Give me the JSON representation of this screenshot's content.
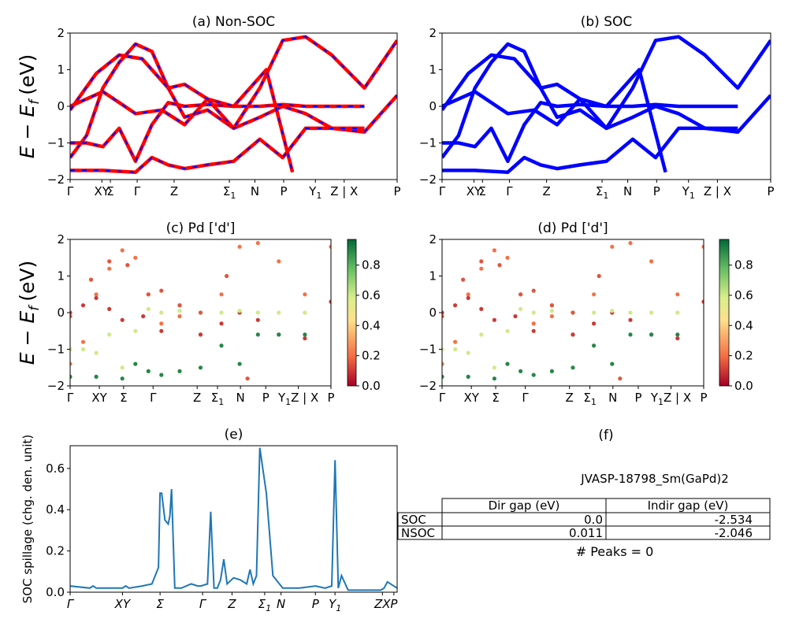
{
  "figure": {
    "ylabel": "E − E",
    "ylabel_sub": "f",
    "ylabel_unit": "(eV)"
  },
  "colors": {
    "nonsoc_band": "#ff0000",
    "nonsoc_dash": "#0000ff",
    "soc_band": "#0000ff",
    "spillage_line": "#1f77b4",
    "colormap": [
      "#a50026",
      "#f46d43",
      "#fee08b",
      "#d9ef8b",
      "#66bd63",
      "#006837"
    ]
  },
  "chart_data": [
    {
      "id": "a",
      "type": "line",
      "title": "(a) Non-SOC",
      "ylim": [
        -2,
        2
      ],
      "yticks": [
        -2,
        -1,
        0,
        1,
        2
      ],
      "xticklabels": [
        "Γ",
        "XY",
        "Σ",
        "Γ",
        "Z",
        "Σ1",
        "N",
        "P",
        "Y1",
        "Z | X",
        "P"
      ],
      "series": [
        {
          "x": [
            0,
            0.05,
            0.1,
            0.15,
            0.2,
            0.25,
            0.3,
            0.35,
            0.42,
            0.5,
            0.58,
            0.65,
            0.72,
            0.8,
            0.9,
            1.0
          ],
          "y": [
            -1.4,
            -0.8,
            0.5,
            1.2,
            1.7,
            1.5,
            0.5,
            -0.3,
            -0.1,
            -0.6,
            0.5,
            1.8,
            1.9,
            1.4,
            0.5,
            1.8
          ]
        },
        {
          "x": [
            0,
            0.05,
            0.1,
            0.15,
            0.2,
            0.28,
            0.35,
            0.42,
            0.5,
            0.58,
            0.65,
            0.72,
            0.8,
            0.9,
            1.0
          ],
          "y": [
            0,
            0.2,
            0.4,
            0.1,
            -0.2,
            -0.1,
            -0.5,
            0.2,
            -0.6,
            -0.3,
            0.0,
            -0.2,
            -0.6,
            -0.7,
            0.3
          ]
        },
        {
          "x": [
            0,
            0.05,
            0.1,
            0.15,
            0.2,
            0.25,
            0.3,
            0.35,
            0.42,
            0.5,
            0.58,
            0.65,
            0.72,
            0.8,
            0.9
          ],
          "y": [
            -1.0,
            -1.0,
            -1.1,
            -0.6,
            -1.5,
            -0.5,
            0.1,
            0.0,
            0.05,
            0.0,
            0.0,
            0.05,
            0.0,
            0.0,
            0.0
          ]
        },
        {
          "x": [
            0,
            0.1,
            0.2,
            0.25,
            0.3,
            0.35,
            0.42,
            0.5,
            0.58,
            0.65,
            0.72,
            0.8,
            0.9
          ],
          "y": [
            -1.75,
            -1.75,
            -1.8,
            -1.4,
            -1.6,
            -1.7,
            -1.6,
            -1.5,
            -0.9,
            -1.4,
            -0.6,
            -0.6,
            -0.6
          ]
        },
        {
          "x": [
            0,
            0.08,
            0.15,
            0.22,
            0.3,
            0.35,
            0.42,
            0.5,
            0.6,
            0.68
          ],
          "y": [
            -0.1,
            0.9,
            1.4,
            1.3,
            0.5,
            0.6,
            0.2,
            0.0,
            1.0,
            -1.8
          ]
        }
      ]
    },
    {
      "id": "b",
      "type": "line",
      "title": "(b) SOC",
      "ylim": [
        -2,
        2
      ],
      "yticks": [
        -2,
        -1,
        0,
        1,
        2
      ],
      "xticklabels": [
        "Γ",
        "XY",
        "Σ",
        "Γ",
        "Z",
        "Σ1",
        "N",
        "P",
        "Y1",
        "Z | X",
        "P"
      ],
      "series": [
        {
          "x": [
            0,
            0.05,
            0.1,
            0.15,
            0.2,
            0.25,
            0.3,
            0.35,
            0.42,
            0.5,
            0.58,
            0.65,
            0.72,
            0.8,
            0.9,
            1.0
          ],
          "y": [
            -1.4,
            -0.8,
            0.5,
            1.2,
            1.7,
            1.5,
            0.5,
            -0.3,
            -0.1,
            -0.6,
            0.5,
            1.8,
            1.9,
            1.4,
            0.5,
            1.8
          ]
        },
        {
          "x": [
            0,
            0.05,
            0.1,
            0.15,
            0.2,
            0.28,
            0.35,
            0.42,
            0.5,
            0.58,
            0.65,
            0.72,
            0.8,
            0.9,
            1.0
          ],
          "y": [
            0,
            0.2,
            0.4,
            0.1,
            -0.2,
            -0.1,
            -0.5,
            0.2,
            -0.6,
            -0.3,
            0.0,
            -0.2,
            -0.6,
            -0.7,
            0.3
          ]
        },
        {
          "x": [
            0,
            0.05,
            0.1,
            0.15,
            0.2,
            0.25,
            0.3,
            0.35,
            0.42,
            0.5,
            0.58,
            0.65,
            0.72,
            0.8,
            0.9
          ],
          "y": [
            -1.0,
            -1.0,
            -1.1,
            -0.6,
            -1.5,
            -0.5,
            0.1,
            0.0,
            0.05,
            0.0,
            0.0,
            0.05,
            0.0,
            0.0,
            0.0
          ]
        },
        {
          "x": [
            0,
            0.1,
            0.2,
            0.25,
            0.3,
            0.35,
            0.42,
            0.5,
            0.58,
            0.65,
            0.72,
            0.8,
            0.9
          ],
          "y": [
            -1.75,
            -1.75,
            -1.8,
            -1.4,
            -1.6,
            -1.7,
            -1.6,
            -1.5,
            -0.9,
            -1.4,
            -0.6,
            -0.6,
            -0.6
          ]
        },
        {
          "x": [
            0,
            0.08,
            0.15,
            0.22,
            0.3,
            0.35,
            0.42,
            0.5,
            0.6,
            0.68
          ],
          "y": [
            -0.1,
            0.9,
            1.4,
            1.3,
            0.5,
            0.6,
            0.2,
            0.0,
            1.0,
            -1.8
          ]
        }
      ]
    },
    {
      "id": "c",
      "type": "scatter",
      "title": "(c)  Pd ['d']",
      "ylim": [
        -2,
        2
      ],
      "yticks": [
        -2,
        -1,
        0,
        1,
        2
      ],
      "colorbar_ticks": [
        0.0,
        0.2,
        0.4,
        0.6,
        0.8
      ],
      "colorbar_range": [
        0.0,
        0.97
      ],
      "xticklabels": [
        "Γ",
        "XY",
        "Σ",
        "Γ",
        "Z",
        "Σ1",
        "N",
        "P",
        "Y1Z | X",
        "P"
      ],
      "series": [
        {
          "x": [
            0,
            0.05,
            0.1,
            0.15,
            0.2,
            0.25,
            0.3,
            0.35,
            0.42,
            0.5,
            0.58,
            0.65,
            0.72,
            0.8,
            0.9,
            1.0
          ],
          "y": [
            -1.4,
            -0.8,
            0.5,
            1.2,
            1.7,
            1.5,
            0.5,
            -0.3,
            -0.1,
            -0.6,
            0.5,
            1.8,
            1.9,
            1.4,
            0.5,
            1.8
          ],
          "w": 0.2
        },
        {
          "x": [
            0,
            0.05,
            0.1,
            0.15,
            0.2,
            0.28,
            0.35,
            0.42,
            0.5,
            0.58,
            0.65,
            0.72,
            0.8,
            0.9,
            1.0
          ],
          "y": [
            0,
            0.2,
            0.4,
            0.1,
            -0.2,
            -0.1,
            -0.5,
            0.2,
            -0.6,
            -0.3,
            0.0,
            -0.2,
            -0.6,
            -0.7,
            0.3
          ],
          "w": 0.1
        },
        {
          "x": [
            0,
            0.05,
            0.1,
            0.15,
            0.2,
            0.25,
            0.3,
            0.35,
            0.42,
            0.5,
            0.58,
            0.65,
            0.72,
            0.8,
            0.9
          ],
          "y": [
            -1.0,
            -1.0,
            -1.1,
            -0.6,
            -1.5,
            -0.5,
            0.1,
            0.0,
            0.05,
            0.0,
            0.0,
            0.05,
            0.0,
            0.0,
            0.0
          ],
          "w": 0.6
        },
        {
          "x": [
            0,
            0.1,
            0.2,
            0.25,
            0.3,
            0.35,
            0.42,
            0.5,
            0.58,
            0.65,
            0.72,
            0.8,
            0.9
          ],
          "y": [
            -1.75,
            -1.75,
            -1.8,
            -1.4,
            -1.6,
            -1.7,
            -1.6,
            -1.5,
            -0.9,
            -1.4,
            -0.6,
            -0.6,
            -0.6
          ],
          "w": 0.9
        },
        {
          "x": [
            0,
            0.08,
            0.15,
            0.22,
            0.3,
            0.35,
            0.42,
            0.5,
            0.6,
            0.68
          ],
          "y": [
            -0.1,
            0.9,
            1.4,
            1.3,
            0.5,
            0.6,
            0.2,
            0.0,
            1.0,
            -1.8
          ],
          "w": 0.15
        }
      ]
    },
    {
      "id": "d",
      "type": "scatter",
      "title": "(d) Pd ['d']",
      "ylim": [
        -2,
        2
      ],
      "yticks": [
        -2,
        -1,
        0,
        1,
        2
      ],
      "colorbar_ticks": [
        0.0,
        0.2,
        0.4,
        0.6,
        0.8
      ],
      "colorbar_range": [
        0.0,
        0.97
      ],
      "xticklabels": [
        "Γ",
        "XY",
        "Σ",
        "Γ",
        "Z",
        "Σ1",
        "N",
        "P",
        "Y1Z | X",
        "P"
      ],
      "series": [
        {
          "x": [
            0,
            0.05,
            0.1,
            0.15,
            0.2,
            0.25,
            0.3,
            0.35,
            0.42,
            0.5,
            0.58,
            0.65,
            0.72,
            0.8,
            0.9,
            1.0
          ],
          "y": [
            -1.4,
            -0.8,
            0.5,
            1.2,
            1.7,
            1.5,
            0.5,
            -0.3,
            -0.1,
            -0.6,
            0.5,
            1.8,
            1.9,
            1.4,
            0.5,
            1.8
          ],
          "w": 0.2
        },
        {
          "x": [
            0,
            0.05,
            0.1,
            0.15,
            0.2,
            0.28,
            0.35,
            0.42,
            0.5,
            0.58,
            0.65,
            0.72,
            0.8,
            0.9,
            1.0
          ],
          "y": [
            0,
            0.2,
            0.4,
            0.1,
            -0.2,
            -0.1,
            -0.5,
            0.2,
            -0.6,
            -0.3,
            0.0,
            -0.2,
            -0.6,
            -0.7,
            0.3
          ],
          "w": 0.1
        },
        {
          "x": [
            0,
            0.05,
            0.1,
            0.15,
            0.2,
            0.25,
            0.3,
            0.35,
            0.42,
            0.5,
            0.58,
            0.65,
            0.72,
            0.8,
            0.9
          ],
          "y": [
            -1.0,
            -1.0,
            -1.1,
            -0.6,
            -1.5,
            -0.5,
            0.1,
            0.0,
            0.05,
            0.0,
            0.0,
            0.05,
            0.0,
            0.0,
            0.0
          ],
          "w": 0.6
        },
        {
          "x": [
            0,
            0.1,
            0.2,
            0.25,
            0.3,
            0.35,
            0.42,
            0.5,
            0.58,
            0.65,
            0.72,
            0.8,
            0.9
          ],
          "y": [
            -1.75,
            -1.75,
            -1.8,
            -1.4,
            -1.6,
            -1.7,
            -1.6,
            -1.5,
            -0.9,
            -1.4,
            -0.6,
            -0.6,
            -0.6
          ],
          "w": 0.9
        },
        {
          "x": [
            0,
            0.08,
            0.15,
            0.22,
            0.3,
            0.35,
            0.42,
            0.5,
            0.6,
            0.68
          ],
          "y": [
            -0.1,
            0.9,
            1.4,
            1.3,
            0.5,
            0.6,
            0.2,
            0.0,
            1.0,
            -1.8
          ],
          "w": 0.15
        }
      ]
    },
    {
      "id": "e",
      "type": "line",
      "title": "(e)",
      "ylabel": "SOC spillage (chg. den. unit)",
      "ylim": [
        0.0,
        0.71
      ],
      "yticks": [
        0.0,
        0.2,
        0.4,
        0.6
      ],
      "xticklabels": [
        "Γ",
        "XY",
        "Σ",
        "Γ",
        "Z",
        "Σ1",
        "N",
        "P",
        "Y1",
        "ZX",
        "P"
      ],
      "x": [
        0,
        0.06,
        0.07,
        0.08,
        0.1,
        0.16,
        0.17,
        0.18,
        0.22,
        0.25,
        0.27,
        0.275,
        0.28,
        0.29,
        0.3,
        0.305,
        0.31,
        0.32,
        0.34,
        0.37,
        0.39,
        0.4,
        0.42,
        0.43,
        0.44,
        0.45,
        0.46,
        0.47,
        0.48,
        0.5,
        0.52,
        0.54,
        0.55,
        0.56,
        0.57,
        0.58,
        0.6,
        0.62,
        0.65,
        0.7,
        0.75,
        0.78,
        0.8,
        0.81,
        0.82,
        0.83,
        0.85,
        0.9,
        0.95,
        0.96,
        0.97,
        1.0
      ],
      "y": [
        0.03,
        0.02,
        0.03,
        0.02,
        0.02,
        0.02,
        0.03,
        0.02,
        0.03,
        0.04,
        0.12,
        0.48,
        0.48,
        0.35,
        0.33,
        0.37,
        0.5,
        0.02,
        0.02,
        0.04,
        0.03,
        0.03,
        0.04,
        0.39,
        0.02,
        0.02,
        0.06,
        0.16,
        0.04,
        0.07,
        0.06,
        0.04,
        0.11,
        0.04,
        0.08,
        0.7,
        0.48,
        0.08,
        0.02,
        0.02,
        0.03,
        0.02,
        0.03,
        0.64,
        0.02,
        0.08,
        0.01,
        0.01,
        0.01,
        0.02,
        0.05,
        0.02
      ]
    }
  ],
  "panel_f": {
    "title": "(f)",
    "material": "JVASP-18798_Sm(GaPd)2",
    "headers": [
      "Dir gap (eV)",
      "Indir gap (eV)"
    ],
    "rows": [
      {
        "label": "SOC",
        "dir": "0.0",
        "indir": "-2.534"
      },
      {
        "label": "NSOC",
        "dir": "0.011",
        "indir": "-2.046"
      }
    ],
    "peaks": "# Peaks = 0"
  }
}
